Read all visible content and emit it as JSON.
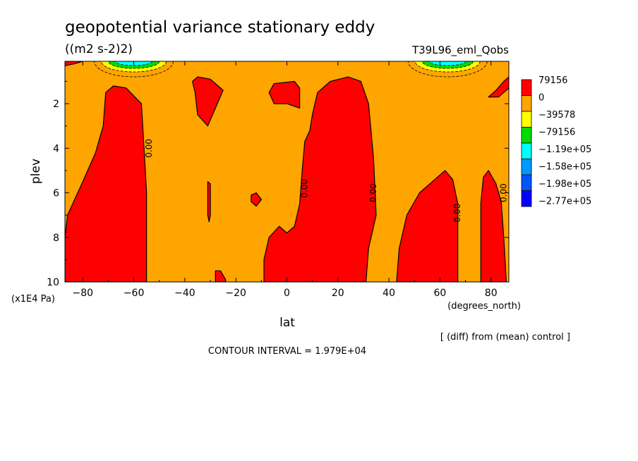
{
  "chart_data": {
    "type": "heatmap",
    "title": "geopotential variance stationary eddy",
    "units": "((m2 s-2)2)",
    "run_label": "T39L96_eml_Qobs",
    "xlabel": "lat",
    "xunits": "(degrees_north)",
    "ylabel": "plev",
    "yunits": "(x1E4 Pa)",
    "xlim": [
      -87,
      87
    ],
    "ylim": [
      0.1,
      10
    ],
    "y_inverted": true,
    "x_ticks": [
      -80,
      -60,
      -40,
      -20,
      0,
      20,
      40,
      60,
      80
    ],
    "y_ticks": [
      2,
      4,
      6,
      8,
      10
    ],
    "contour_interval_text": "CONTOUR INTERVAL = 1.979E+04",
    "diff_note": "[ (diff) from (mean) control ]",
    "contour_label": "0.00",
    "legend": {
      "placement": "right",
      "levels": [
        "79156",
        "0",
        "-39578",
        "-79156",
        "-1.19e+05",
        "-1.58e+05",
        "-1.98e+05",
        "-2.77e+05"
      ],
      "colors": [
        "#ff0000",
        "#ffa500",
        "#ffff00",
        "#00dd00",
        "#00ffff",
        "#0099ff",
        "#0055ff",
        "#0000ff"
      ]
    },
    "background_color": "#ffa500",
    "positive_color": "#ff0000",
    "regions": [
      {
        "level": "positive",
        "pts": [
          [
            -87,
            8
          ],
          [
            -86,
            7
          ],
          [
            -80,
            5.5
          ],
          [
            -75,
            4.2
          ],
          [
            -72,
            3
          ],
          [
            -71,
            1.5
          ],
          [
            -68,
            1.2
          ],
          [
            -63,
            1.3
          ],
          [
            -57,
            2
          ],
          [
            -56,
            4
          ],
          [
            -55,
            6
          ],
          [
            -55,
            10
          ],
          [
            -87,
            10
          ]
        ]
      },
      {
        "level": "positive",
        "pts": [
          [
            -37,
            1
          ],
          [
            -35,
            0.8
          ],
          [
            -30,
            0.9
          ],
          [
            -25,
            1.4
          ],
          [
            -31,
            3
          ],
          [
            -35,
            2.5
          ],
          [
            -36,
            1.5
          ]
        ]
      },
      {
        "level": "positive",
        "pts": [
          [
            -31,
            5.5
          ],
          [
            -30,
            5.6
          ],
          [
            -30,
            7
          ],
          [
            -30.5,
            7.3
          ],
          [
            -31,
            7
          ]
        ]
      },
      {
        "level": "positive",
        "pts": [
          [
            -28,
            9.5
          ],
          [
            -26,
            9.5
          ],
          [
            -24,
            9.9
          ],
          [
            -24,
            10
          ],
          [
            -28,
            10
          ]
        ]
      },
      {
        "level": "positive",
        "pts": [
          [
            -14,
            6.1
          ],
          [
            -12,
            6
          ],
          [
            -10,
            6.3
          ],
          [
            -12,
            6.6
          ],
          [
            -14,
            6.4
          ]
        ]
      },
      {
        "level": "positive",
        "pts": [
          [
            -7,
            1.5
          ],
          [
            -5,
            1.1
          ],
          [
            3,
            1
          ],
          [
            5,
            1.3
          ],
          [
            5,
            2.2
          ],
          [
            0,
            2
          ],
          [
            -5,
            2
          ]
        ]
      },
      {
        "level": "positive",
        "pts": [
          [
            -9,
            10
          ],
          [
            -9,
            9
          ],
          [
            -7,
            8
          ],
          [
            -3,
            7.5
          ],
          [
            0,
            7.8
          ],
          [
            3,
            7.5
          ],
          [
            5,
            6.5
          ],
          [
            6,
            5
          ],
          [
            7,
            3.7
          ],
          [
            9,
            3.2
          ],
          [
            10,
            2.5
          ],
          [
            12,
            1.5
          ],
          [
            17,
            1
          ],
          [
            24,
            0.8
          ],
          [
            29,
            1
          ],
          [
            32,
            2
          ],
          [
            34,
            4.5
          ],
          [
            35,
            7
          ],
          [
            32,
            8.5
          ],
          [
            31,
            10
          ]
        ]
      },
      {
        "level": "positive",
        "pts": [
          [
            43,
            10
          ],
          [
            44,
            8.5
          ],
          [
            47,
            7
          ],
          [
            52,
            6
          ],
          [
            57,
            5.5
          ],
          [
            62,
            5
          ],
          [
            65,
            5.4
          ],
          [
            67,
            6.5
          ],
          [
            67,
            10
          ]
        ]
      },
      {
        "level": "positive",
        "pts": [
          [
            76,
            10
          ],
          [
            76,
            6.5
          ],
          [
            77,
            5.3
          ],
          [
            79,
            5
          ],
          [
            82,
            5.6
          ],
          [
            84,
            6.4
          ],
          [
            85,
            8
          ],
          [
            86,
            10
          ]
        ]
      },
      {
        "level": "positive",
        "pts": [
          [
            79,
            1.7
          ],
          [
            82,
            1.4
          ],
          [
            85,
            1
          ],
          [
            87,
            0.8
          ],
          [
            87,
            1.3
          ],
          [
            83,
            1.7
          ]
        ]
      },
      {
        "level": "positive",
        "pts": [
          [
            -87,
            0.3
          ],
          [
            -83,
            0.2
          ],
          [
            -80,
            0.1
          ],
          [
            -87,
            0.1
          ]
        ]
      }
    ],
    "negative_centers": [
      {
        "lat": -60,
        "min_level": "-1.19e+05"
      },
      {
        "lat": 63,
        "min_level": "-1.19e+05"
      }
    ],
    "contour_labels_at": [
      {
        "lat": -54,
        "plev": 4.0
      },
      {
        "lat": 7,
        "plev": 5.8
      },
      {
        "lat": 34,
        "plev": 6.0
      },
      {
        "lat": 67,
        "plev": 6.9
      },
      {
        "lat": 85,
        "plev": 6.0
      }
    ]
  }
}
